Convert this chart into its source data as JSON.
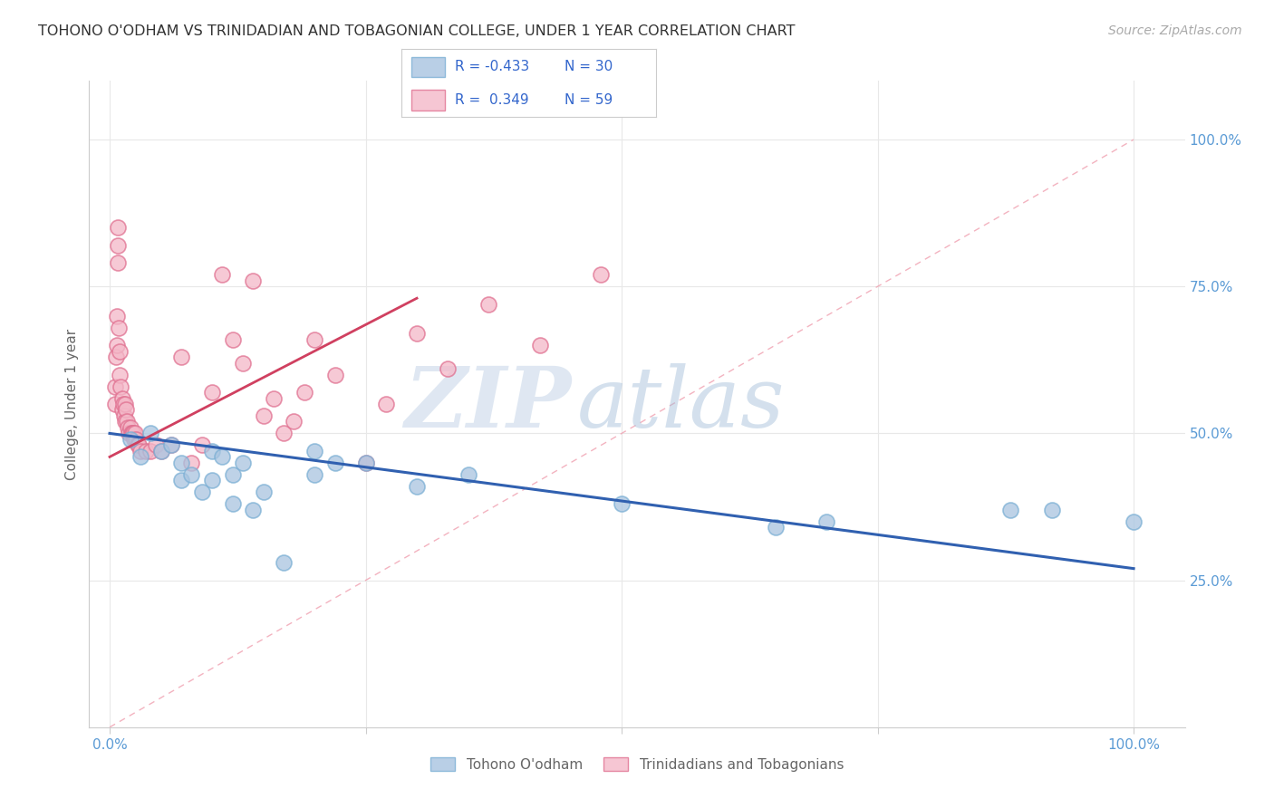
{
  "title": "TOHONO O'ODHAM VS TRINIDADIAN AND TOBAGONIAN COLLEGE, UNDER 1 YEAR CORRELATION CHART",
  "source": "Source: ZipAtlas.com",
  "ylabel": "College, Under 1 year",
  "watermark_zip": "ZIP",
  "watermark_atlas": "atlas",
  "blue_color": "#a8c4e0",
  "blue_edge_color": "#7bafd4",
  "pink_color": "#f4b8c8",
  "pink_edge_color": "#e07090",
  "blue_line_color": "#3060b0",
  "pink_line_color": "#d04060",
  "pink_dash_color": "#f0a0b0",
  "legend_r_blue": "R = -0.433",
  "legend_n_blue": "N = 30",
  "legend_r_pink": "R =  0.349",
  "legend_n_pink": "N = 59",
  "blue_points_x": [
    0.02,
    0.03,
    0.04,
    0.05,
    0.06,
    0.07,
    0.07,
    0.08,
    0.09,
    0.1,
    0.1,
    0.11,
    0.12,
    0.12,
    0.13,
    0.14,
    0.15,
    0.17,
    0.2,
    0.2,
    0.22,
    0.25,
    0.3,
    0.35,
    0.5,
    0.65,
    0.7,
    0.88,
    0.92,
    1.0
  ],
  "blue_points_y": [
    0.49,
    0.46,
    0.5,
    0.47,
    0.48,
    0.45,
    0.42,
    0.43,
    0.4,
    0.47,
    0.42,
    0.46,
    0.43,
    0.38,
    0.45,
    0.37,
    0.4,
    0.28,
    0.47,
    0.43,
    0.45,
    0.45,
    0.41,
    0.43,
    0.38,
    0.34,
    0.35,
    0.37,
    0.37,
    0.35
  ],
  "pink_points_x": [
    0.005,
    0.005,
    0.006,
    0.007,
    0.007,
    0.008,
    0.008,
    0.008,
    0.009,
    0.01,
    0.01,
    0.011,
    0.012,
    0.012,
    0.013,
    0.014,
    0.015,
    0.015,
    0.016,
    0.017,
    0.018,
    0.019,
    0.02,
    0.021,
    0.022,
    0.023,
    0.024,
    0.025,
    0.026,
    0.027,
    0.028,
    0.03,
    0.035,
    0.04,
    0.045,
    0.05,
    0.06,
    0.07,
    0.08,
    0.09,
    0.1,
    0.11,
    0.12,
    0.13,
    0.14,
    0.15,
    0.16,
    0.17,
    0.18,
    0.19,
    0.2,
    0.22,
    0.25,
    0.27,
    0.3,
    0.33,
    0.37,
    0.42,
    0.48
  ],
  "pink_points_y": [
    0.58,
    0.55,
    0.63,
    0.7,
    0.65,
    0.85,
    0.82,
    0.79,
    0.68,
    0.64,
    0.6,
    0.58,
    0.56,
    0.54,
    0.55,
    0.53,
    0.55,
    0.52,
    0.54,
    0.52,
    0.51,
    0.5,
    0.51,
    0.5,
    0.5,
    0.5,
    0.49,
    0.5,
    0.49,
    0.48,
    0.48,
    0.47,
    0.47,
    0.47,
    0.48,
    0.47,
    0.48,
    0.63,
    0.45,
    0.48,
    0.57,
    0.77,
    0.66,
    0.62,
    0.76,
    0.53,
    0.56,
    0.5,
    0.52,
    0.57,
    0.66,
    0.6,
    0.45,
    0.55,
    0.67,
    0.61,
    0.72,
    0.65,
    0.77
  ],
  "blue_line": {
    "x0": 0.0,
    "y0": 0.5,
    "x1": 1.0,
    "y1": 0.27
  },
  "pink_line": {
    "x0": 0.0,
    "y0": 0.46,
    "x1": 0.3,
    "y1": 0.73
  },
  "pink_dash_line": {
    "x0": 0.0,
    "y0": 0.0,
    "x1": 1.0,
    "y1": 1.0
  },
  "xlim": [
    -0.02,
    1.05
  ],
  "ylim": [
    0.0,
    1.1
  ],
  "x_ticks": [
    0.0,
    0.25,
    0.5,
    0.75,
    1.0
  ],
  "x_tick_labels": [
    "0.0%",
    "",
    "",
    "",
    "100.0%"
  ],
  "y_ticks_right": [
    0.25,
    0.5,
    0.75,
    1.0
  ],
  "y_tick_labels_right": [
    "25.0%",
    "50.0%",
    "75.0%",
    "100.0%"
  ],
  "grid_color": "#e8e8e8",
  "background_color": "#ffffff",
  "tick_color": "#5b9bd5",
  "label_color": "#666666",
  "title_color": "#333333",
  "source_color": "#aaaaaa"
}
